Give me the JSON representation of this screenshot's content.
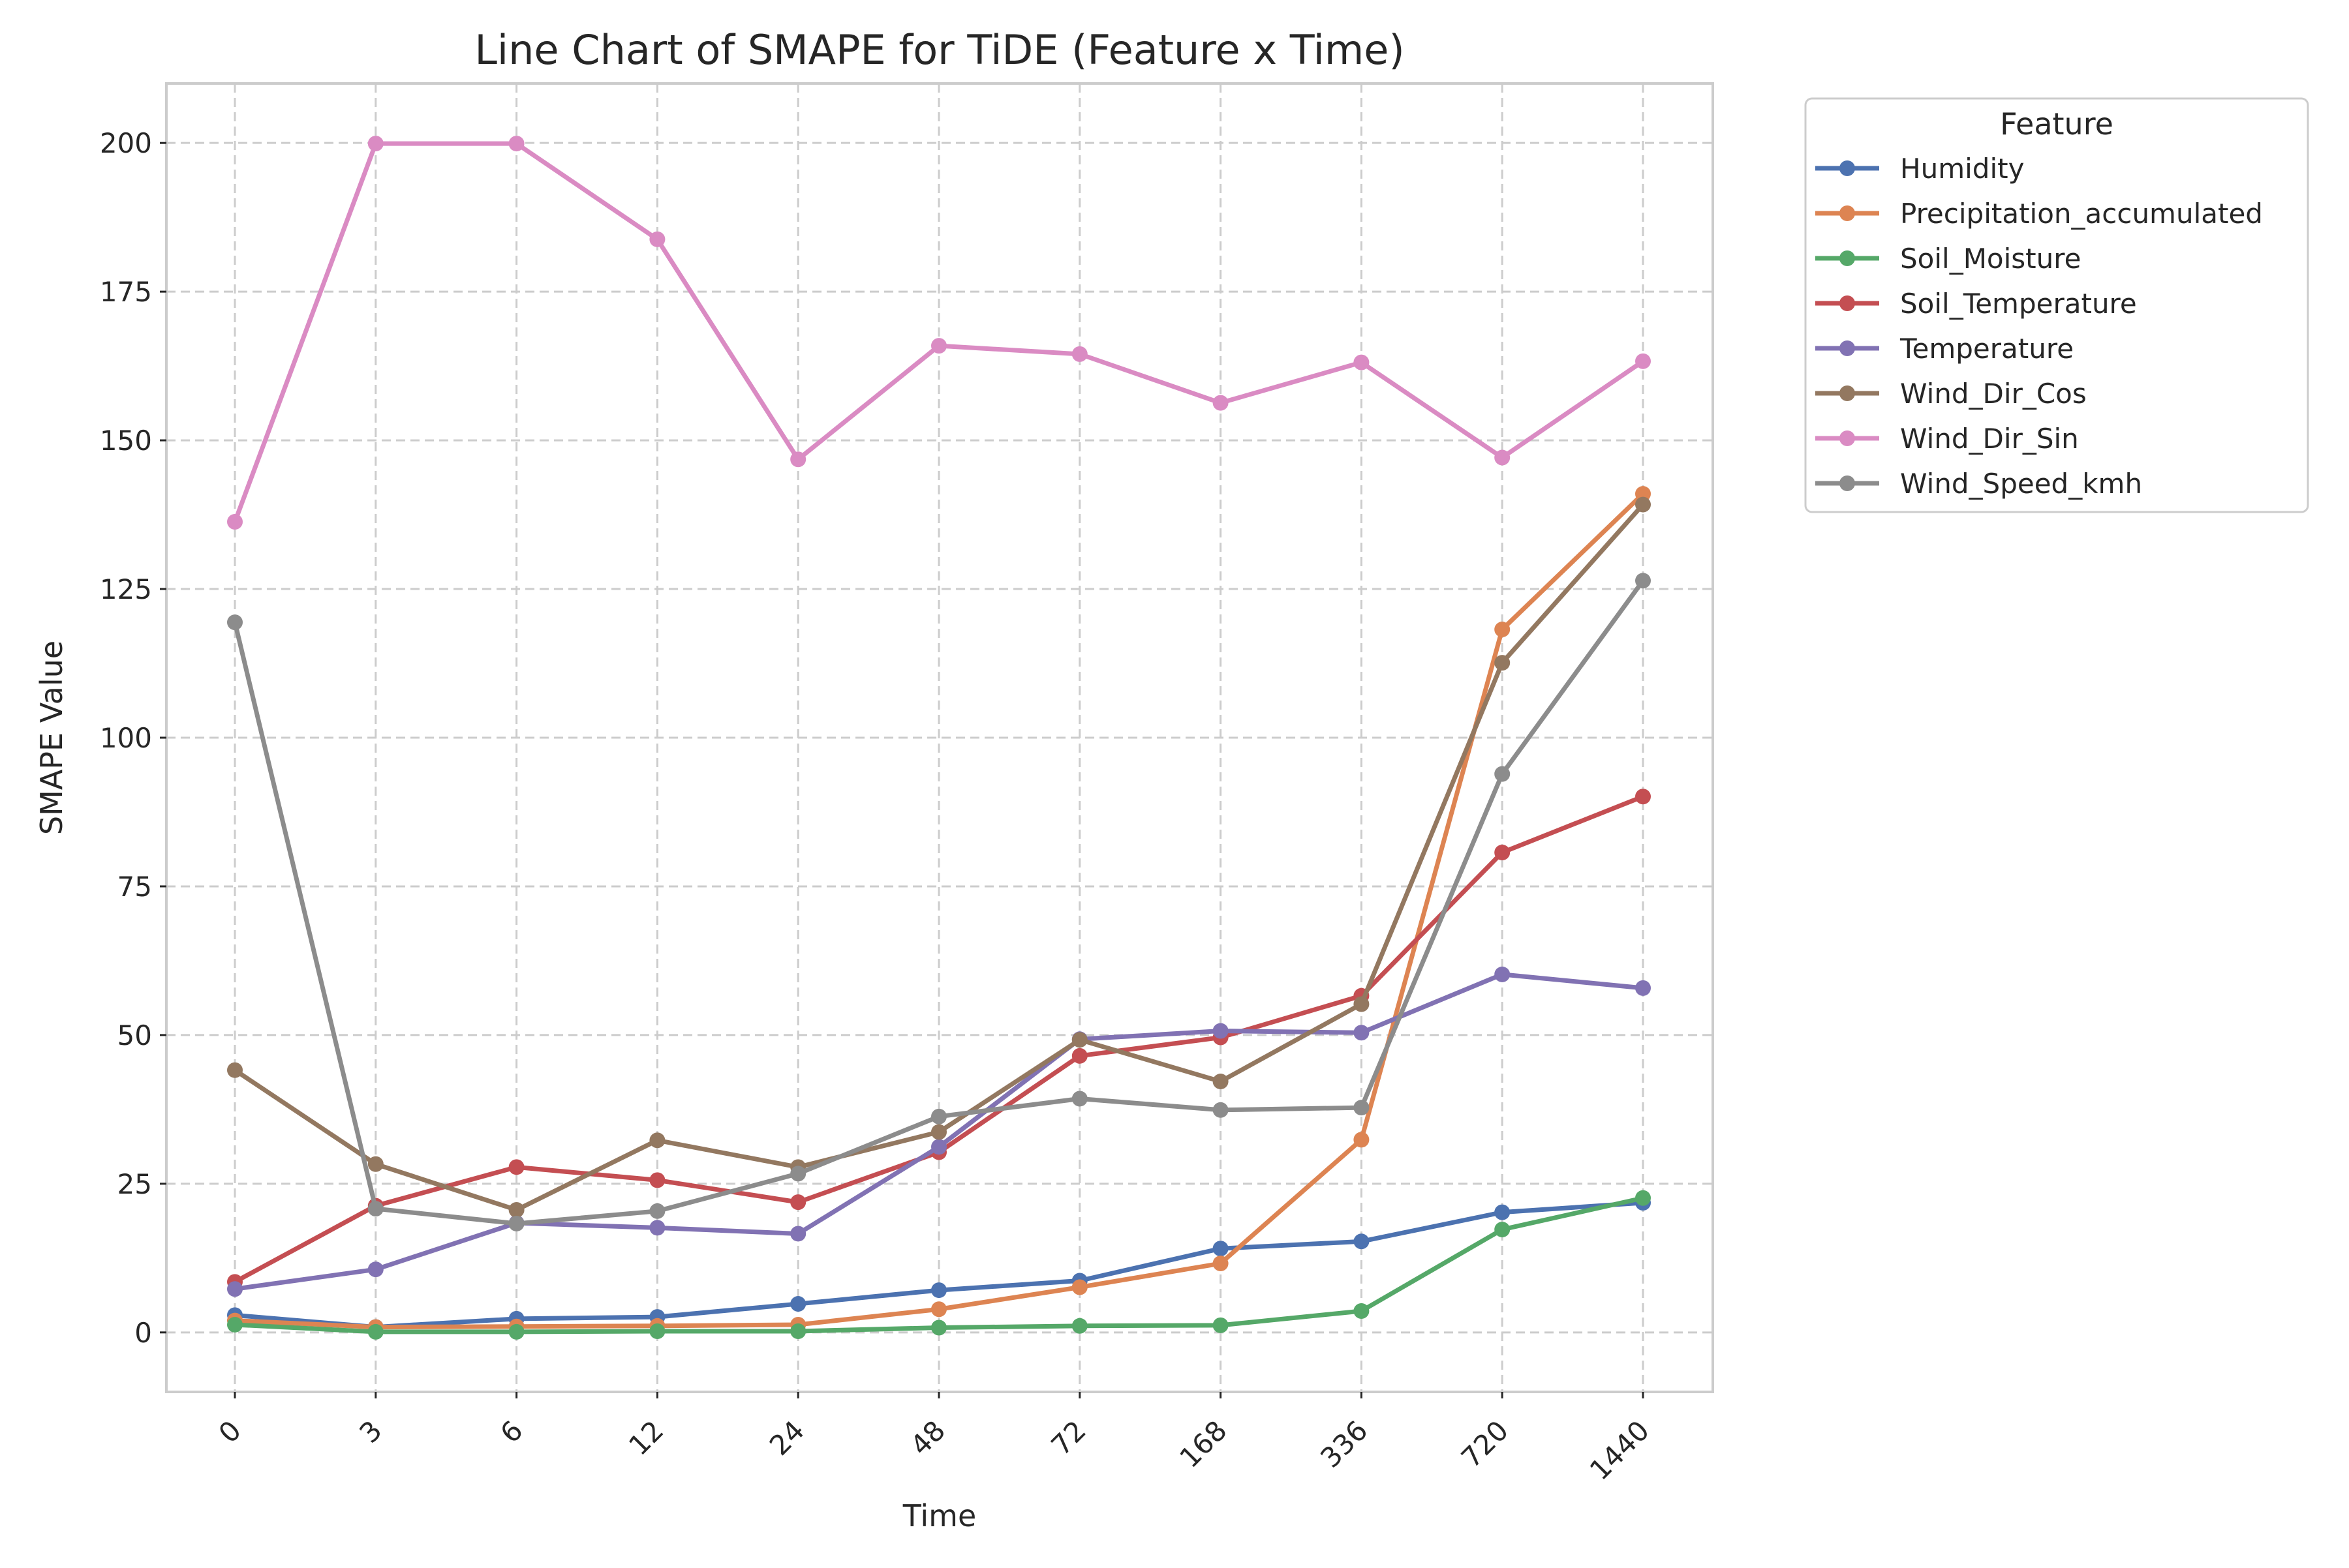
{
  "chart_data": {
    "type": "line",
    "title": "Line Chart of SMAPE for TiDE (Feature x Time)",
    "xlabel": "Time",
    "ylabel": "SMAPE Value",
    "x_categories": [
      "0",
      "3",
      "6",
      "12",
      "24",
      "48",
      "72",
      "168",
      "336",
      "720",
      "1440"
    ],
    "ylim": [
      -10,
      210
    ],
    "y_ticks": [
      0,
      25,
      50,
      75,
      100,
      125,
      150,
      175,
      200
    ],
    "grid": true,
    "legend": {
      "title": "Feature",
      "placement": "outside-top-right"
    },
    "series": [
      {
        "name": "Humidity",
        "color": "#4c72b0",
        "values": [
          2.9,
          0.9,
          2.3,
          2.6,
          4.8,
          7.1,
          8.7,
          14.1,
          15.3,
          20.2,
          21.8
        ]
      },
      {
        "name": "Precipitation_accumulated",
        "color": "#dd8452",
        "values": [
          2.0,
          0.9,
          1.0,
          1.1,
          1.3,
          3.9,
          7.6,
          11.6,
          32.4,
          118.2,
          141.0
        ]
      },
      {
        "name": "Soil_Moisture",
        "color": "#55a868",
        "values": [
          1.3,
          0.1,
          0.1,
          0.2,
          0.2,
          0.8,
          1.1,
          1.2,
          3.6,
          17.3,
          22.6
        ]
      },
      {
        "name": "Soil_Temperature",
        "color": "#c44e52",
        "values": [
          8.5,
          21.3,
          27.8,
          25.6,
          21.9,
          30.3,
          46.5,
          49.6,
          56.6,
          80.7,
          90.1
        ]
      },
      {
        "name": "Temperature",
        "color": "#8172b3",
        "values": [
          7.3,
          10.6,
          18.4,
          17.6,
          16.6,
          31.2,
          49.3,
          50.7,
          50.4,
          60.2,
          57.9
        ]
      },
      {
        "name": "Wind_Dir_Cos",
        "color": "#937860",
        "values": [
          44.1,
          28.3,
          20.6,
          32.3,
          27.8,
          33.7,
          49.2,
          42.2,
          55.2,
          112.6,
          139.2
        ]
      },
      {
        "name": "Wind_Dir_Sin",
        "color": "#da8bc3",
        "values": [
          136.3,
          199.9,
          199.9,
          183.8,
          146.8,
          165.9,
          164.5,
          156.3,
          163.1,
          147.1,
          163.3
        ]
      },
      {
        "name": "Wind_Speed_kmh",
        "color": "#8c8c8c",
        "values": [
          119.4,
          20.8,
          18.3,
          20.4,
          26.7,
          36.3,
          39.3,
          37.4,
          37.8,
          93.9,
          126.4
        ]
      }
    ]
  }
}
